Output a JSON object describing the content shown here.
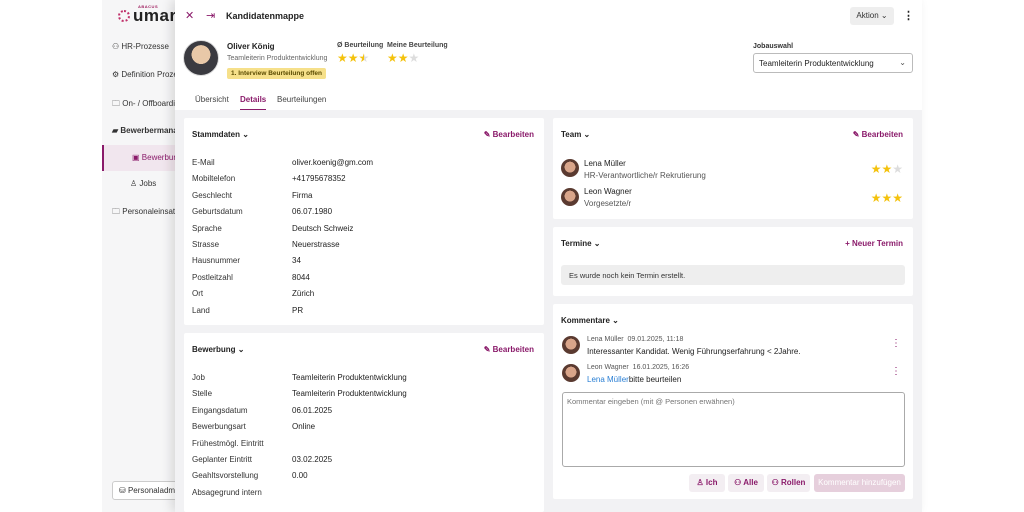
{
  "sidebar": {
    "logo_top": "ABACUS",
    "logo": "umar",
    "items": [
      {
        "label": "HR-Prozesse",
        "icon": "users-icon"
      },
      {
        "label": "Definition Prozesse",
        "icon": "gear-icon"
      },
      {
        "label": "On- / Offboarding",
        "icon": "folder-icon"
      },
      {
        "label": "Bewerbermanagement",
        "icon": "folder-open-icon"
      },
      {
        "label": "Bewerbungen",
        "icon": "id-card-icon"
      },
      {
        "label": "Jobs",
        "icon": "person-icon"
      },
      {
        "label": "Personaleinsatz",
        "icon": "folder-icon"
      }
    ],
    "footer": "Personaladministration"
  },
  "header": {
    "title": "Kandidatenmappe",
    "action": "Aktion"
  },
  "candidate": {
    "name": "Oliver König",
    "role": "Teamleiterin Produktentwicklung",
    "status": "1. Interview Beurteilung offen",
    "avg_label": "Ø Beurteilung",
    "avg_rating": 2.5,
    "my_label": "Meine Beurteilung",
    "my_rating": 2
  },
  "job": {
    "label": "Jobauswahl",
    "value": "Teamleiterin Produktentwicklung"
  },
  "tabs": [
    "Übersicht",
    "Details",
    "Beurteilungen"
  ],
  "stammdaten": {
    "title": "Stammdaten",
    "edit": "Bearbeiten",
    "rows": [
      [
        "E-Mail",
        "oliver.koenig@gm.com"
      ],
      [
        "Mobiltelefon",
        "+41795678352"
      ],
      [
        "Geschlecht",
        "Firma"
      ],
      [
        "Geburtsdatum",
        "06.07.1980"
      ],
      [
        "Sprache",
        "Deutsch Schweiz"
      ],
      [
        "Strasse",
        "Neuerstrasse"
      ],
      [
        "Hausnummer",
        "34"
      ],
      [
        "Postleitzahl",
        "8044"
      ],
      [
        "Ort",
        "Zürich"
      ],
      [
        "Land",
        "PR"
      ]
    ]
  },
  "bewerbung": {
    "title": "Bewerbung",
    "edit": "Bearbeiten",
    "rows": [
      [
        "Job",
        "Teamleiterin Produktentwicklung"
      ],
      [
        "Stelle",
        "Teamleiterin Produktentwicklung"
      ],
      [
        "Eingangsdatum",
        "06.01.2025"
      ],
      [
        "Bewerbungsart",
        "Online"
      ],
      [
        "Frühestmögl. Eintritt",
        ""
      ],
      [
        "Geplanter Eintritt",
        "03.02.2025"
      ],
      [
        "Geahltsvorstellung",
        "0.00"
      ],
      [
        "Absagegrund intern",
        ""
      ]
    ]
  },
  "team": {
    "title": "Team",
    "edit": "Bearbeiten",
    "members": [
      {
        "name": "Lena Müller",
        "role": "HR-Verantwortliche/r Rekrutierung",
        "rating": 2
      },
      {
        "name": "Leon Wagner",
        "role": "Vorgesetzte/r",
        "rating": 3
      }
    ]
  },
  "termine": {
    "title": "Termine",
    "new": "Neuer Termin",
    "empty": "Es wurde noch kein Termin erstellt."
  },
  "kommentare": {
    "title": "Kommentare",
    "items": [
      {
        "author": "Lena Müller",
        "date": "09.01.2025, 11:18",
        "mention": "",
        "text": "Interessanter Kandidat. Wenig Führungserfahrung < 2Jahre."
      },
      {
        "author": "Leon Wagner",
        "date": "16.01.2025, 16:26",
        "mention": "Lena Müller",
        "text": "bitte beurteilen"
      }
    ],
    "placeholder": "Kommentar eingeben (mit @ Personen erwähnen)",
    "btn_me": "Ich",
    "btn_all": "Alle",
    "btn_roles": "Rollen",
    "btn_add": "Kommentar hinzufügen"
  },
  "colors": {
    "accent": "#8a1a6a",
    "star": "#f4c20d",
    "badge": "#f6e08a"
  }
}
